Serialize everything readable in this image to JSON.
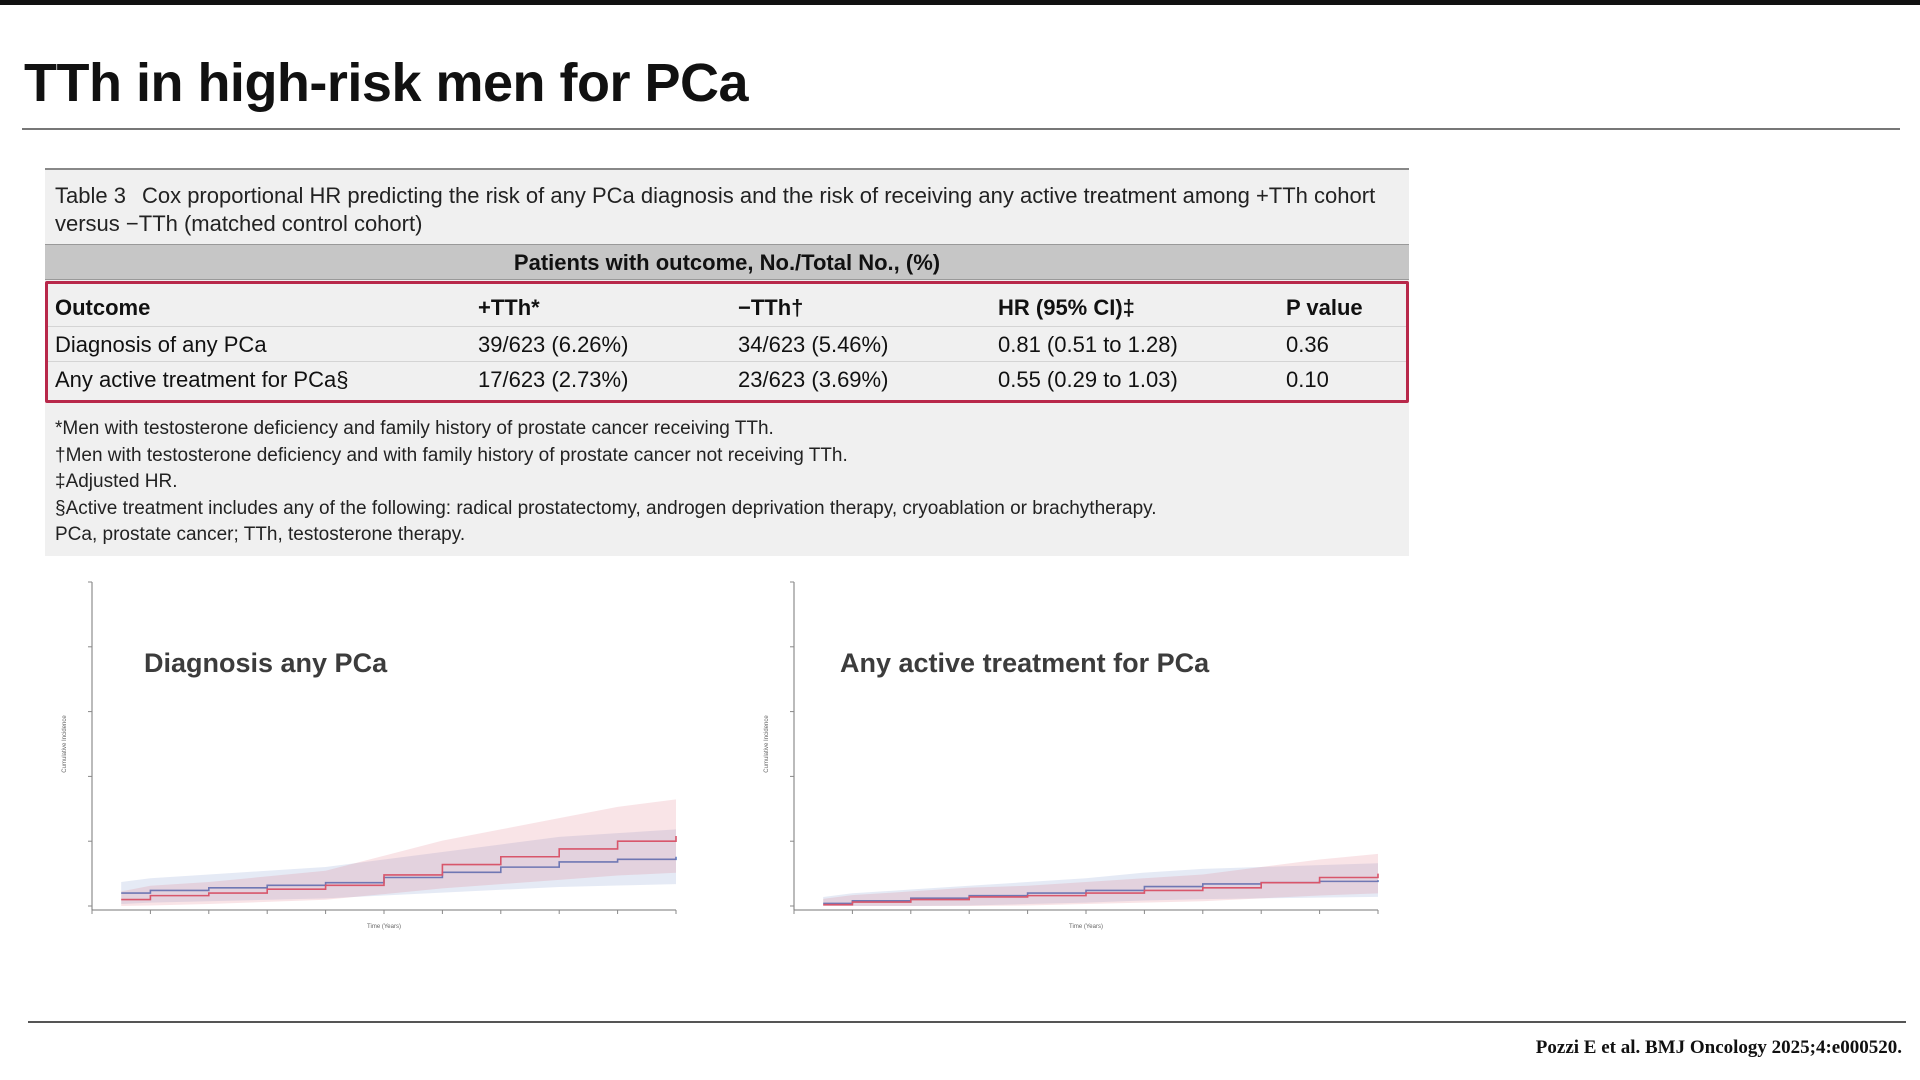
{
  "slide": {
    "title": "TTh in high-risk men for PCa",
    "citation": "Pozzi E et al. BMJ Oncology 2025;4:e000520."
  },
  "table": {
    "caption_number": "Table 3",
    "caption_text": "Cox proportional HR predicting the risk of any PCa diagnosis and the risk of receiving any active treatment among +TTh cohort versus −TTh (matched control cohort)",
    "spanner": "Patients with outcome, No./Total No., (%)",
    "columns": [
      "Outcome",
      "+TTh*",
      "−TTh†",
      "HR (95% CI)‡",
      "P value"
    ],
    "rows": [
      [
        "Diagnosis of any PCa",
        "39/623 (6.26%)",
        "34/623 (5.46%)",
        "0.81 (0.51 to 1.28)",
        "0.36"
      ],
      [
        "Any active treatment for PCa§",
        "17/623 (2.73%)",
        "23/623 (3.69%)",
        "0.55 (0.29 to 1.03)",
        "0.10"
      ]
    ],
    "footnotes": [
      "*Men with testosterone deficiency and family history of prostate cancer receiving TTh.",
      "†Men with testosterone deficiency and with family history of prostate cancer not receiving TTh.",
      "‡Adjusted HR.",
      "§Active treatment includes any of the following: radical prostatectomy, androgen deprivation therapy, cryoablation or brachytherapy.",
      "PCa, prostate cancer; TTh, testosterone therapy."
    ]
  },
  "chart_data": [
    {
      "type": "line",
      "title": "Diagnosis any PCa",
      "xlabel": "Time (Years)",
      "ylabel": "Cumulative Incidence",
      "xlim": [
        0,
        10
      ],
      "ylim": [
        0,
        0.25
      ],
      "series": [
        {
          "color": "#5b7ec2",
          "x": [
            0.5,
            1,
            2,
            3,
            4,
            5,
            6,
            7,
            8,
            9,
            10
          ],
          "y": [
            0.01,
            0.012,
            0.014,
            0.016,
            0.018,
            0.022,
            0.026,
            0.03,
            0.034,
            0.036,
            0.038
          ]
        },
        {
          "color": "#d8566b",
          "x": [
            0.5,
            1,
            2,
            3,
            4,
            5,
            6,
            7,
            8,
            9,
            10
          ],
          "y": [
            0.005,
            0.008,
            0.01,
            0.013,
            0.016,
            0.024,
            0.032,
            0.038,
            0.044,
            0.05,
            0.054
          ]
        }
      ]
    },
    {
      "type": "line",
      "title": "Any active treatment for PCa",
      "xlabel": "Time (Years)",
      "ylabel": "Cumulative Incidence",
      "xlim": [
        0,
        10
      ],
      "ylim": [
        0,
        0.25
      ],
      "series": [
        {
          "color": "#5b7ec2",
          "x": [
            0.5,
            1,
            2,
            3,
            4,
            5,
            6,
            7,
            8,
            9,
            10
          ],
          "y": [
            0.002,
            0.004,
            0.006,
            0.008,
            0.01,
            0.012,
            0.015,
            0.017,
            0.018,
            0.019,
            0.02
          ]
        },
        {
          "color": "#d8566b",
          "x": [
            0.5,
            1,
            2,
            3,
            4,
            5,
            6,
            7,
            8,
            9,
            10
          ],
          "y": [
            0.001,
            0.003,
            0.005,
            0.007,
            0.008,
            0.01,
            0.012,
            0.014,
            0.018,
            0.022,
            0.025
          ]
        }
      ]
    }
  ]
}
